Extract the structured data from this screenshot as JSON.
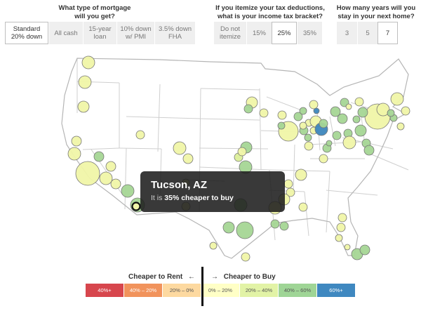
{
  "controls": {
    "mortgage": {
      "title_line1": "What type of mortgage",
      "title_line2": "will you get?",
      "options": [
        {
          "l1": "Standard",
          "l2": "20% down",
          "selected": true
        },
        {
          "l1": "All cash",
          "l2": "",
          "selected": false
        },
        {
          "l1": "15-year",
          "l2": "loan",
          "selected": false
        },
        {
          "l1": "10% down",
          "l2": "w/ PMI",
          "selected": false
        },
        {
          "l1": "3.5% down",
          "l2": "FHA",
          "selected": false
        }
      ]
    },
    "tax": {
      "title_line1": "If you itemize your tax deductions,",
      "title_line2": "what is your income tax bracket?",
      "options": [
        {
          "l1": "Do not",
          "l2": "itemize",
          "selected": false
        },
        {
          "l1": "15%",
          "l2": "",
          "selected": false
        },
        {
          "l1": "25%",
          "l2": "",
          "selected": true
        },
        {
          "l1": "35%",
          "l2": "",
          "selected": false
        }
      ]
    },
    "years": {
      "title_line1": "How many years will you",
      "title_line2": "stay in your next home?",
      "options": [
        {
          "l1": "3",
          "l2": "",
          "selected": false
        },
        {
          "l1": "5",
          "l2": "",
          "selected": false
        },
        {
          "l1": "7",
          "l2": "",
          "selected": true
        }
      ]
    }
  },
  "tooltip": {
    "city": "Tucson, AZ",
    "prefix": "It is ",
    "value": "35% cheaper to buy",
    "suffix": ""
  },
  "legend": {
    "rent_label": "Cheaper to Rent",
    "rent_arrow": "←",
    "buy_arrow": "→",
    "buy_label": "Cheaper to Buy",
    "bins": [
      {
        "label": "40%+",
        "color": "#d7464d",
        "text": "#ffffff"
      },
      {
        "label": "40% – 20%",
        "color": "#f1935c",
        "text": "#ffffff"
      },
      {
        "label": "20% – 0%",
        "color": "#fdd9a0",
        "text": "#555555"
      },
      {
        "label": "0% – 20%",
        "color": "#ffffc6",
        "text": "#555555"
      },
      {
        "label": "20% – 40%",
        "color": "#e2f3a6",
        "text": "#555555"
      },
      {
        "label": "40% – 60%",
        "color": "#9fd596",
        "text": "#555555"
      },
      {
        "label": "60%+",
        "color": "#3f88c0",
        "text": "#ffffff"
      }
    ]
  },
  "colors": {
    "c1": "#f0f6a8",
    "c2": "#dcef9a",
    "c3": "#a5d695",
    "c4": "#3d87bd",
    "state_line": "#cfcfcf",
    "outline": "#b5b5b5",
    "dot_stroke": "#777777"
  },
  "dot_colors": [
    "c1",
    "c1",
    "c1",
    "c1",
    "c1",
    "c3",
    "c1",
    "c1",
    "c1",
    "c1",
    "c1",
    "c3",
    "c3",
    "c1",
    "c1",
    "c1",
    "c1",
    "c2",
    "c3",
    "c3",
    "c1",
    "c3",
    "c3",
    "c3",
    "c1",
    "c1",
    "c1",
    "c1",
    "c3",
    "c1",
    "c1",
    "c3",
    "c3",
    "c3",
    "c3",
    "c1",
    "c1",
    "c1",
    "c1",
    "c1",
    "c1",
    "c3",
    "c4",
    "c4",
    "c3",
    "c3",
    "c3",
    "c1",
    "c3",
    "c3",
    "c3",
    "c3",
    "c1",
    "c3",
    "c3",
    "c3",
    "c3",
    "c1",
    "c1",
    "c3",
    "c3",
    "c1",
    "c1",
    "c1",
    "c3",
    "c1",
    "c1",
    "c3",
    "c1",
    "c1",
    "c1",
    "c1",
    "c3",
    "c3",
    "c1",
    "c1",
    "c1",
    "c1",
    "c1",
    "c3",
    "c3",
    "c1"
  ]
}
